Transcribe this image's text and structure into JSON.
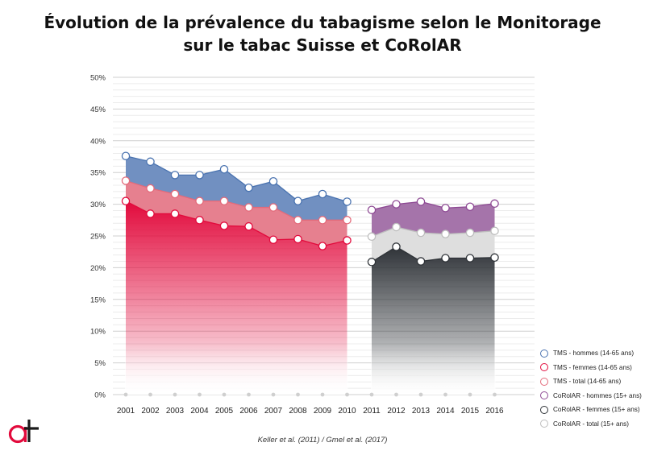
{
  "title_line1": "Évolution de la prévalence du tabagisme selon le Monitorage",
  "title_line2": "sur le tabac Suisse et CoRolAR",
  "source": "Keller et al. (2011) / Gmel et al. (2017)",
  "logo": {
    "name": "at-logo",
    "text": "at",
    "color": "#e20a3c"
  },
  "chart_data": {
    "type": "area",
    "title": "Évolution de la prévalence du tabagisme selon le Monitorage sur le tabac Suisse et CoRolAR",
    "xlabel": "",
    "ylabel": "",
    "ylim": [
      0,
      50
    ],
    "yticks": [
      "0%",
      "5%",
      "10%",
      "15%",
      "20%",
      "25%",
      "30%",
      "35%",
      "40%",
      "45%",
      "50%"
    ],
    "categories": [
      "2001",
      "2002",
      "2003",
      "2004",
      "2005",
      "2006",
      "2007",
      "2008",
      "2009",
      "2010",
      "2011",
      "2012",
      "2013",
      "2014",
      "2015",
      "2016"
    ],
    "grid": true,
    "legend_position": "bottom-right",
    "series": [
      {
        "name": "TMS - hommes (14-65 ans)",
        "color": "#4a73b0",
        "values": [
          37.6,
          36.7,
          34.6,
          34.6,
          35.5,
          32.6,
          33.6,
          30.5,
          31.6,
          30.4,
          null,
          null,
          null,
          null,
          null,
          null
        ]
      },
      {
        "name": "TMS - femmes (14-65 ans)",
        "color": "#e20a3c",
        "values": [
          30.5,
          28.5,
          28.5,
          27.5,
          26.6,
          26.5,
          24.4,
          24.5,
          23.4,
          24.3,
          null,
          null,
          null,
          null,
          null,
          null
        ]
      },
      {
        "name": "TMS - total (14-65 ans)",
        "color": "#e36a7a",
        "values": [
          33.7,
          32.5,
          31.6,
          30.5,
          30.5,
          29.5,
          29.5,
          27.5,
          27.5,
          27.5,
          null,
          null,
          null,
          null,
          null,
          null
        ]
      },
      {
        "name": "CoRolAR - hommes (15+ ans)",
        "color": "#8e4a94",
        "values": [
          null,
          null,
          null,
          null,
          null,
          null,
          null,
          null,
          null,
          null,
          29.1,
          30.0,
          30.4,
          29.4,
          29.6,
          30.1
        ]
      },
      {
        "name": "CoRolAR - femmes (15+ ans)",
        "color": "#2f3338",
        "values": [
          null,
          null,
          null,
          null,
          null,
          null,
          null,
          null,
          null,
          null,
          20.9,
          23.3,
          21.0,
          21.5,
          21.5,
          21.6
        ]
      },
      {
        "name": "CoRolAR - total (15+ ans)",
        "color": "#c8c8c8",
        "values": [
          null,
          null,
          null,
          null,
          null,
          null,
          null,
          null,
          null,
          null,
          24.9,
          26.4,
          25.5,
          25.3,
          25.5,
          25.8
        ]
      }
    ]
  }
}
